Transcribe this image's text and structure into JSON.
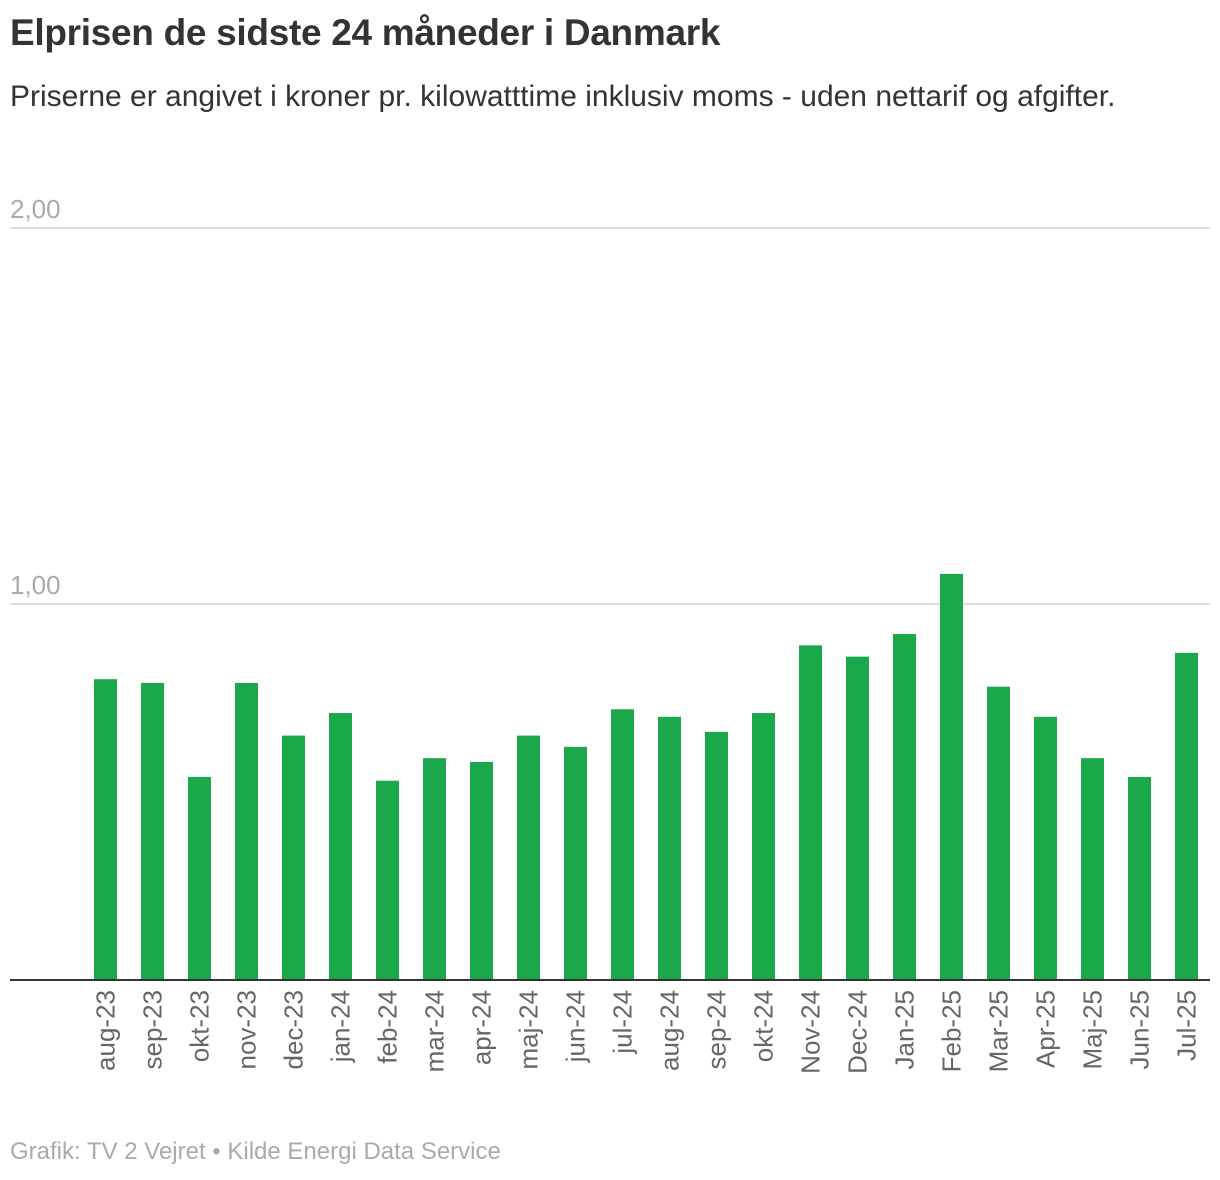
{
  "header": {
    "title": "Elprisen de sidste 24 måneder i Danmark",
    "subtitle": "Priserne er angivet i kroner pr. kilowatttime inklusiv moms - uden nettarif og afgifter."
  },
  "footer": {
    "source": "Grafik: TV 2 Vejret • Kilde Energi Data Service"
  },
  "colors": {
    "bar": "#1aa84a",
    "grid": "#dddddd",
    "baseline": "#333333"
  },
  "chart_data": {
    "type": "bar",
    "title": "Elprisen de sidste 24 måneder i Danmark",
    "xlabel": "",
    "ylabel": "",
    "ylim": [
      0,
      2
    ],
    "y_ticks": [
      {
        "value": 1,
        "label": "1,00"
      },
      {
        "value": 2,
        "label": "2,00"
      }
    ],
    "categories": [
      "aug-23",
      "sep-23",
      "okt-23",
      "nov-23",
      "dec-23",
      "jan-24",
      "feb-24",
      "mar-24",
      "apr-24",
      "maj-24",
      "jun-24",
      "jul-24",
      "aug-24",
      "sep-24",
      "okt-24",
      "Nov-24",
      "Dec-24",
      "Jan-25",
      "Feb-25",
      "Mar-25",
      "Apr-25",
      "Maj-25",
      "Jun-25",
      "Jul-25"
    ],
    "values": [
      0.8,
      0.79,
      0.54,
      0.79,
      0.65,
      0.71,
      0.53,
      0.59,
      0.58,
      0.65,
      0.62,
      0.72,
      0.7,
      0.66,
      0.71,
      0.89,
      0.86,
      0.92,
      1.08,
      0.78,
      0.7,
      0.59,
      0.54,
      0.87
    ],
    "grid": true,
    "legend": "none"
  }
}
